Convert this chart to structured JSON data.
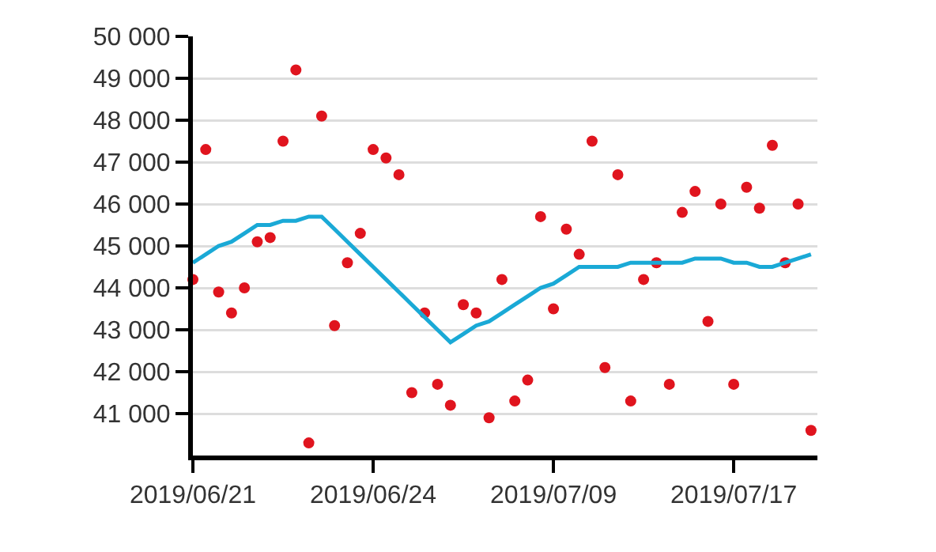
{
  "chart_data": {
    "type": "scatter",
    "categories": [
      "2019/06/21",
      null,
      null,
      null,
      null,
      null,
      null,
      null,
      null,
      null,
      null,
      null,
      null,
      null,
      "2019/06/24",
      null,
      null,
      null,
      null,
      null,
      null,
      null,
      null,
      null,
      null,
      null,
      null,
      null,
      "2019/07/09",
      null,
      null,
      null,
      null,
      null,
      null,
      null,
      null,
      null,
      null,
      null,
      null,
      null,
      "2019/07/17",
      null,
      null,
      null,
      null,
      null,
      null
    ],
    "series": [
      {
        "color": "#e0141e",
        "marker": "circle",
        "values": [
          44200,
          47300,
          43900,
          43400,
          44000,
          45100,
          45200,
          47500,
          49200,
          40300,
          48100,
          43100,
          44600,
          45300,
          47300,
          47100,
          46700,
          41500,
          43400,
          41700,
          41200,
          43600,
          43400,
          40900,
          44200,
          41300,
          41800,
          45700,
          43500,
          45400,
          44800,
          47500,
          42100,
          46700,
          41300,
          44200,
          44600,
          41700,
          45800,
          46300,
          43200,
          46000,
          41700,
          46400,
          45900,
          47400,
          44600,
          46000,
          40600
        ]
      },
      {
        "type": "line",
        "color": "#1aa9d6",
        "marker": "none",
        "line_style": "solid",
        "values": [
          44600,
          44800,
          45000,
          45100,
          45300,
          45500,
          45500,
          45600,
          45600,
          45700,
          45700,
          45400,
          45100,
          44800,
          44500,
          44200,
          43900,
          43600,
          43300,
          43000,
          42700,
          42900,
          43100,
          43200,
          43400,
          43600,
          43800,
          44000,
          44100,
          44300,
          44500,
          44500,
          44500,
          44500,
          44600,
          44600,
          44600,
          44600,
          44600,
          44700,
          44700,
          44700,
          44600,
          44600,
          44500,
          44500,
          44600,
          44700,
          44800
        ]
      }
    ],
    "ylim": [
      40000,
      50000
    ],
    "yticks": [
      {
        "value": 41000,
        "label": "41 000"
      },
      {
        "value": 42000,
        "label": "42 000"
      },
      {
        "value": 43000,
        "label": "43 000"
      },
      {
        "value": 44000,
        "label": "44 000"
      },
      {
        "value": 45000,
        "label": "45 000"
      },
      {
        "value": 46000,
        "label": "46 000"
      },
      {
        "value": 47000,
        "label": "47 000"
      },
      {
        "value": 48000,
        "label": "48 000"
      },
      {
        "value": 49000,
        "label": "49 000"
      },
      {
        "value": 50000,
        "label": "50 000"
      }
    ],
    "grid": "y",
    "legend": false
  }
}
